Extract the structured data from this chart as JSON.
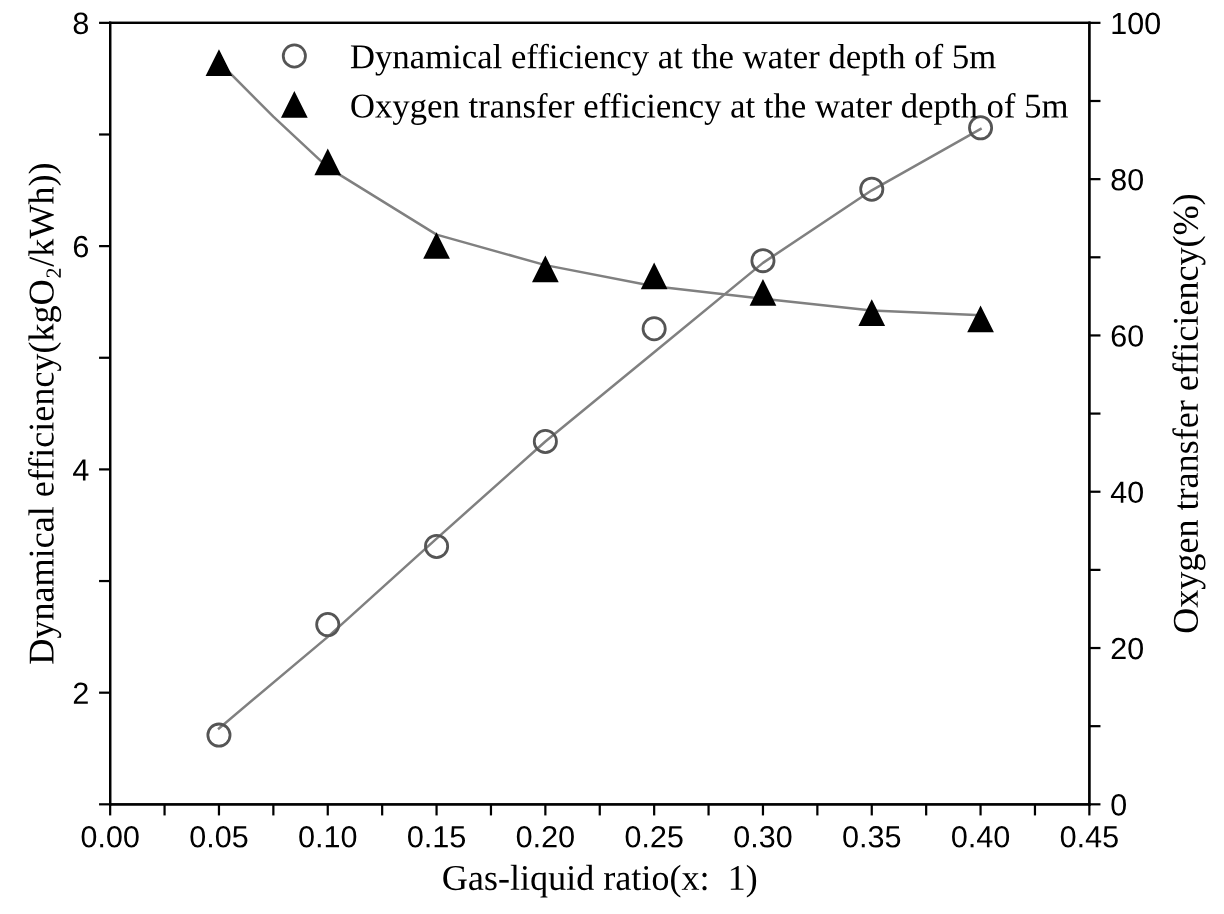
{
  "chart_data": {
    "type": "scatter",
    "xlabel": "Gas-liquid ratio(x:  1)",
    "ylabel": "Dynamical efficiency(kgO₂/kWh))",
    "y2label": "Oxygen transfer efficiency(%)",
    "xlim": [
      0.0,
      0.45
    ],
    "xticks": [
      {
        "value": 0.0,
        "label": "0.00"
      },
      {
        "value": 0.025,
        "label": null
      },
      {
        "value": 0.05,
        "label": "0.05"
      },
      {
        "value": 0.075,
        "label": null
      },
      {
        "value": 0.1,
        "label": "0.10"
      },
      {
        "value": 0.125,
        "label": null
      },
      {
        "value": 0.15,
        "label": "0.15"
      },
      {
        "value": 0.175,
        "label": null
      },
      {
        "value": 0.2,
        "label": "0.20"
      },
      {
        "value": 0.225,
        "label": null
      },
      {
        "value": 0.25,
        "label": "0.25"
      },
      {
        "value": 0.275,
        "label": null
      },
      {
        "value": 0.3,
        "label": "0.30"
      },
      {
        "value": 0.325,
        "label": null
      },
      {
        "value": 0.35,
        "label": "0.35"
      },
      {
        "value": 0.375,
        "label": null
      },
      {
        "value": 0.4,
        "label": "0.40"
      },
      {
        "value": 0.425,
        "label": null
      },
      {
        "value": 0.45,
        "label": "0.45"
      }
    ],
    "ylim": [
      1,
      8
    ],
    "yticks": [
      {
        "value": 1,
        "label": null
      },
      2,
      {
        "value": 3,
        "label": null
      },
      4,
      {
        "value": 5,
        "label": null
      },
      6,
      {
        "value": 7,
        "label": null
      },
      8
    ],
    "y2lim": [
      0,
      100
    ],
    "y2ticks": [
      0,
      {
        "value": 10,
        "label": null
      },
      20,
      {
        "value": 30,
        "label": null
      },
      40,
      {
        "value": 50,
        "label": null
      },
      60,
      {
        "value": 70,
        "label": null
      },
      80,
      {
        "value": 90,
        "label": null
      },
      100
    ],
    "legend": "top right",
    "grid": false,
    "series": [
      {
        "name": "Dynamical efficiency at the water depth of 5m",
        "marker": "circle",
        "color": "#555555",
        "x": [
          0.05,
          0.1,
          0.15,
          0.2,
          0.25,
          0.3,
          0.35,
          0.4
        ],
        "values": [
          1.62,
          2.61,
          3.31,
          4.25,
          5.26,
          5.87,
          6.51,
          7.06
        ]
      },
      {
        "name": "Oxygen transfer efficiency at the water depth of 5m",
        "marker": "triangle",
        "color": "#000000",
        "axis": "y2",
        "x": [
          0.05,
          0.1,
          0.15,
          0.2,
          0.25,
          0.3,
          0.35,
          0.4
        ],
        "values": [
          94.8,
          82.1,
          71.4,
          68.4,
          67.5,
          65.4,
          62.8,
          62.0
        ]
      },
      {
        "type": "line",
        "color": "#808080",
        "x": [
          0.05,
          0.1,
          0.15,
          0.2,
          0.25,
          0.3,
          0.35,
          0.4
        ],
        "values": [
          1.68,
          2.5,
          3.38,
          4.25,
          5.05,
          5.85,
          6.5,
          7.05
        ]
      },
      {
        "type": "line",
        "color": "#808080",
        "axis": "y2",
        "x": [
          0.05,
          0.075,
          0.1,
          0.15,
          0.2,
          0.25,
          0.3,
          0.35,
          0.4
        ],
        "values": [
          95,
          88,
          81.5,
          72.9,
          69.0,
          66.3,
          64.7,
          63.2,
          62.6
        ]
      }
    ]
  }
}
